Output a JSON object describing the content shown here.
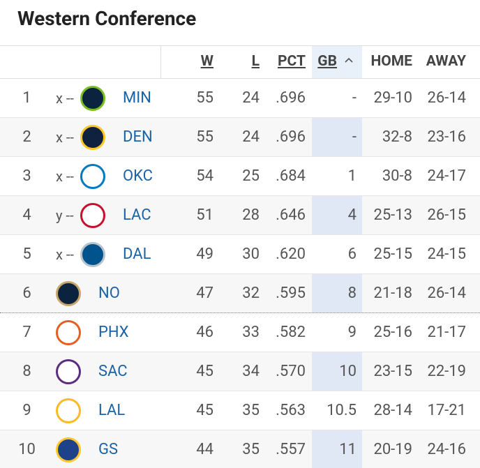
{
  "title": "Western Conference",
  "columns": [
    "W",
    "L",
    "PCT",
    "GB",
    "HOME",
    "AWAY"
  ],
  "rows": [
    {
      "rank": "1",
      "clinch": "x --",
      "team": "MIN",
      "w": "55",
      "l": "24",
      "pct": ".696",
      "gb": "-",
      "home": "29-10",
      "away": "26-14"
    },
    {
      "rank": "2",
      "clinch": "x --",
      "team": "DEN",
      "w": "55",
      "l": "24",
      "pct": ".696",
      "gb": "-",
      "home": "32-8",
      "away": "23-16"
    },
    {
      "rank": "3",
      "clinch": "x --",
      "team": "OKC",
      "w": "54",
      "l": "25",
      "pct": ".684",
      "gb": "1",
      "home": "30-8",
      "away": "24-17"
    },
    {
      "rank": "4",
      "clinch": "y --",
      "team": "LAC",
      "w": "51",
      "l": "28",
      "pct": ".646",
      "gb": "4",
      "home": "25-13",
      "away": "26-15"
    },
    {
      "rank": "5",
      "clinch": "x --",
      "team": "DAL",
      "w": "49",
      "l": "30",
      "pct": ".620",
      "gb": "6",
      "home": "25-15",
      "away": "24-15"
    },
    {
      "rank": "6",
      "team": "NO",
      "w": "47",
      "l": "32",
      "pct": ".595",
      "gb": "8",
      "home": "21-18",
      "away": "26-14"
    },
    {
      "rank": "7",
      "team": "PHX",
      "w": "46",
      "l": "33",
      "pct": ".582",
      "gb": "9",
      "home": "25-16",
      "away": "21-17"
    },
    {
      "rank": "8",
      "team": "SAC",
      "w": "45",
      "l": "34",
      "pct": ".570",
      "gb": "10",
      "home": "23-15",
      "away": "22-19"
    },
    {
      "rank": "9",
      "team": "LAL",
      "w": "45",
      "l": "35",
      "pct": ".563",
      "gb": "10.5",
      "home": "28-14",
      "away": "17-21"
    },
    {
      "rank": "10",
      "team": "GS",
      "w": "44",
      "l": "35",
      "pct": ".557",
      "gb": "11",
      "home": "20-19",
      "away": "24-16"
    }
  ]
}
